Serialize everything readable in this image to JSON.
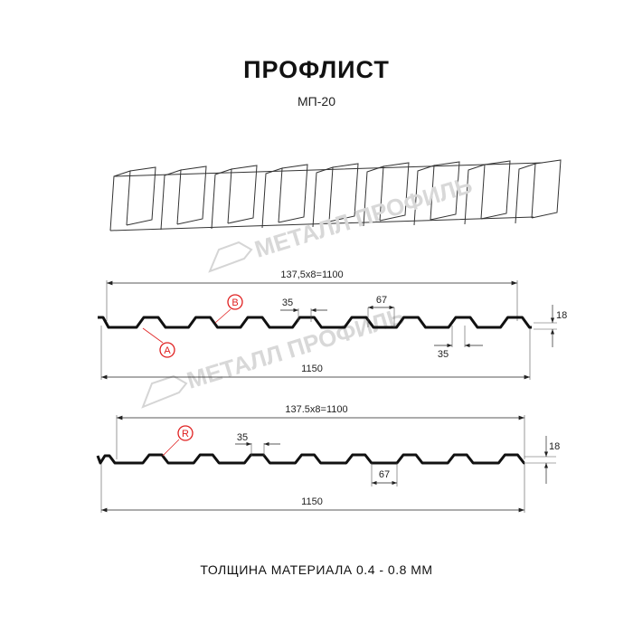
{
  "title": "ПРОФЛИСТ",
  "subtitle": "МП-20",
  "watermark": "МЕТАЛЛ ПРОФИЛЬ",
  "footer": "ТОЛЩИНА МАТЕРИАЛА 0.4 - 0.8 ММ",
  "profile_a": {
    "overall_width_label": "137,5x8=1100",
    "total_width_label": "1150",
    "crest_label": "35",
    "valley_label": "35",
    "pitch_label": "67",
    "height_label": "18",
    "marker_b": "B",
    "marker_a": "A"
  },
  "profile_r": {
    "overall_width_label": "137.5x8=1100",
    "total_width_label": "1150",
    "crest_label": "35",
    "pitch_label": "67",
    "height_label": "18",
    "marker_r": "R"
  },
  "colors": {
    "line": "#111111",
    "marker": "#e02020",
    "watermark": "#d8d8d8"
  }
}
